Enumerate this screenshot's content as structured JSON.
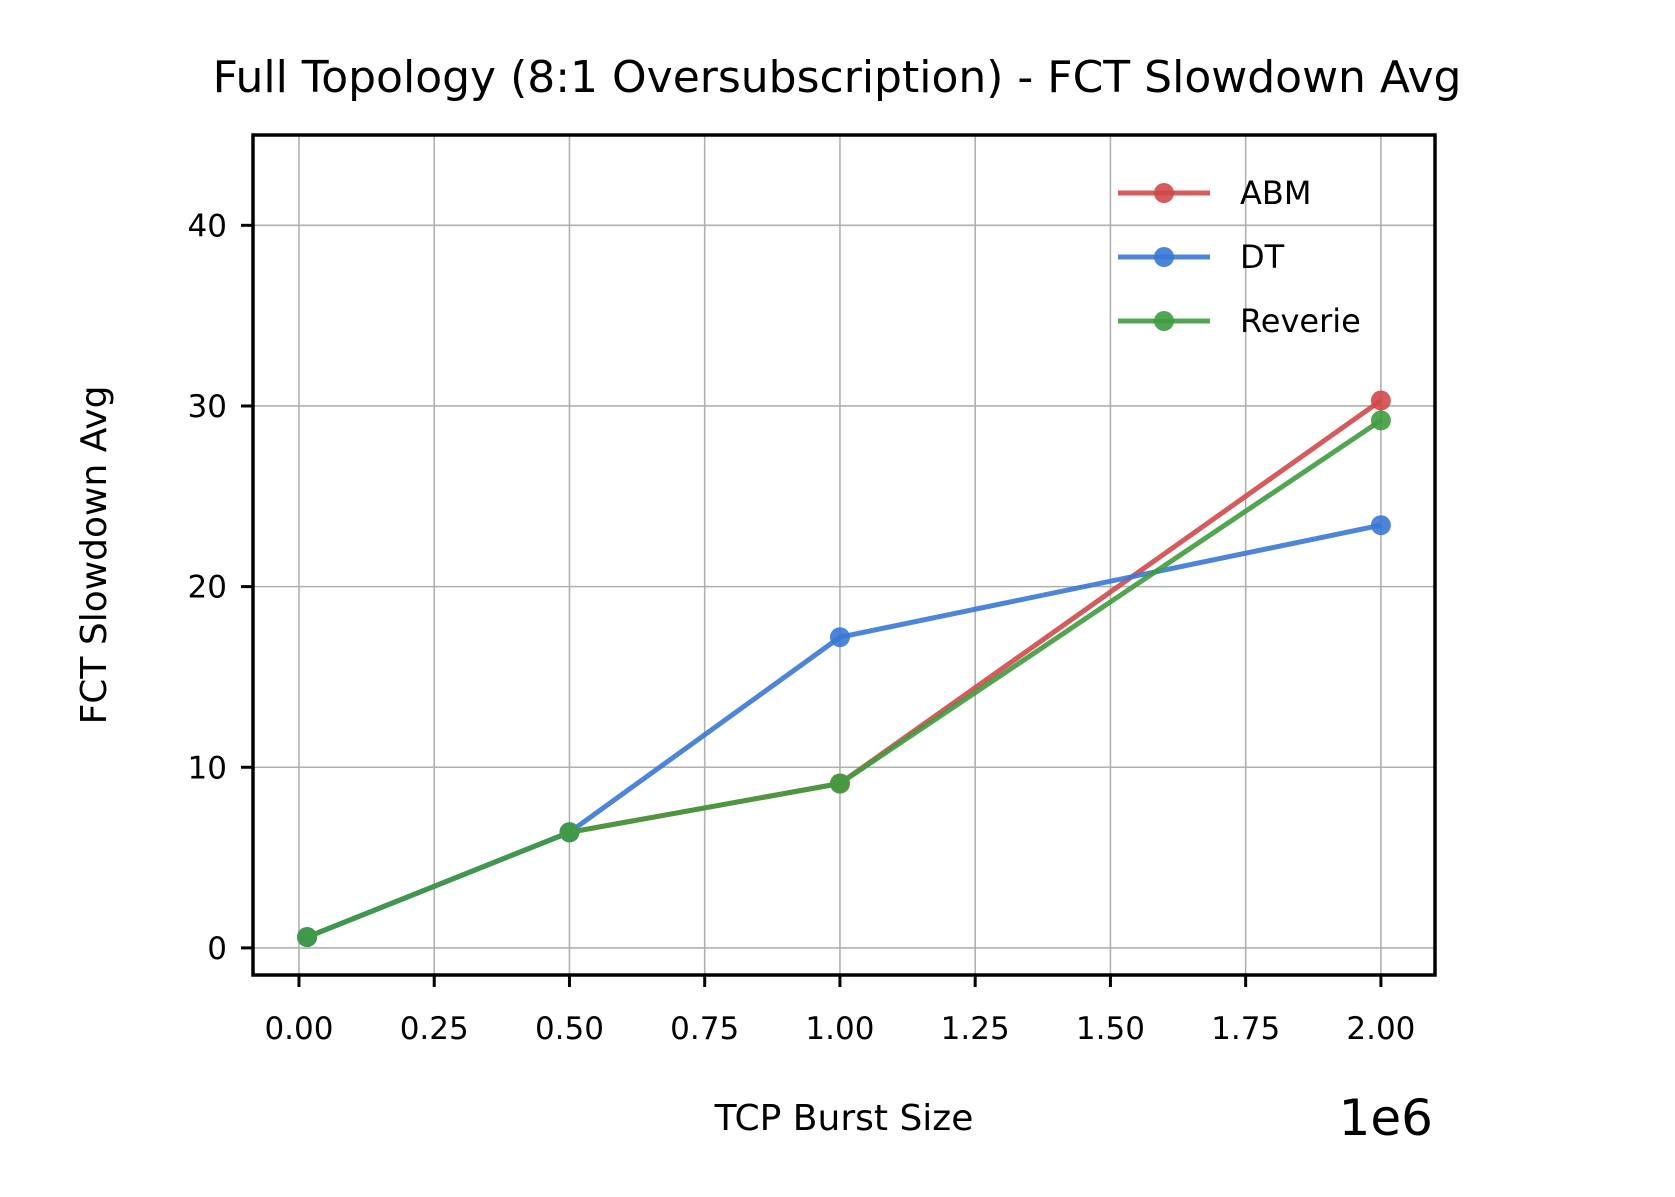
{
  "chart_data": {
    "type": "line",
    "title": "Full Topology (8:1 Oversubscription) - FCT Slowdown Avg",
    "xlabel": "TCP Burst Size",
    "ylabel": "FCT Slowdown Avg",
    "x_offset_label": "1e6",
    "xlim": [
      -0.085,
      2.1
    ],
    "ylim": [
      -1.5,
      45
    ],
    "x_ticks": [
      0.0,
      0.25,
      0.5,
      0.75,
      1.0,
      1.25,
      1.5,
      1.75,
      2.0
    ],
    "x_tick_labels": [
      "0.00",
      "0.25",
      "0.50",
      "0.75",
      "1.00",
      "1.25",
      "1.50",
      "1.75",
      "2.00"
    ],
    "y_ticks": [
      0,
      10,
      20,
      30,
      40
    ],
    "y_tick_labels": [
      "0",
      "10",
      "20",
      "30",
      "40"
    ],
    "grid": true,
    "legend_position": "top-right",
    "x": [
      0.015,
      0.5,
      1.0,
      2.0
    ],
    "series": [
      {
        "name": "ABM",
        "color": "#d0494a",
        "values": [
          0.6,
          6.4,
          9.1,
          30.3
        ]
      },
      {
        "name": "DT",
        "color": "#3a78d6",
        "values": [
          0.6,
          6.4,
          17.2,
          23.4
        ]
      },
      {
        "name": "Reverie",
        "color": "#3f9c3f",
        "values": [
          0.6,
          6.4,
          9.1,
          29.2
        ]
      }
    ]
  }
}
